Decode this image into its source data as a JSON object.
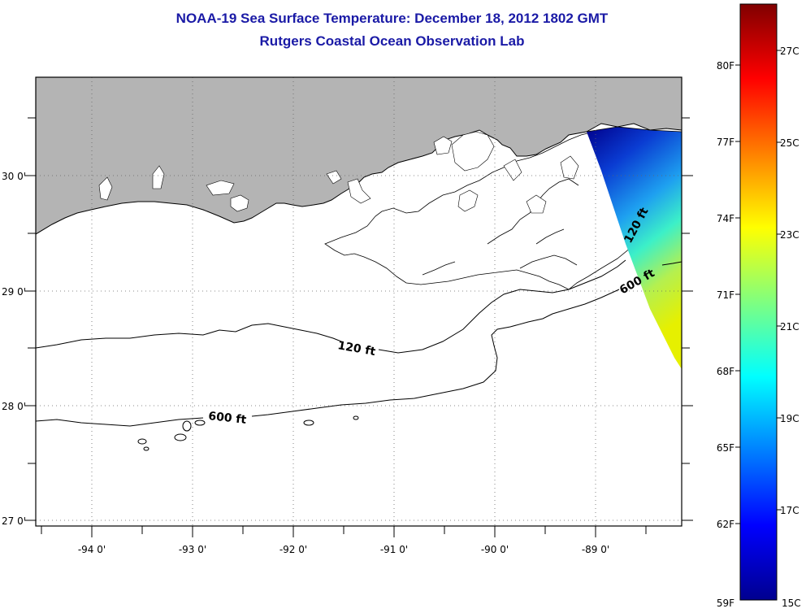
{
  "title": "NOAA-19 Sea Surface Temperature:  December 18, 2012 1802 GMT",
  "subtitle": "Rutgers Coastal Ocean Observation Lab",
  "map": {
    "lon_ticks": [
      "-94 0'",
      "-93 0'",
      "-92 0'",
      "-91 0'",
      "-90 0'",
      "-89 0'"
    ],
    "lat_ticks": [
      "30 0'",
      "29 0'",
      "28 0'",
      "27 0'"
    ],
    "contour_labels": [
      {
        "text": "120 ft",
        "id": "shelf-west"
      },
      {
        "text": "600 ft",
        "id": "slope-west"
      },
      {
        "text": "120 ft",
        "id": "shelf-east"
      },
      {
        "text": "600 ft",
        "id": "slope-east"
      }
    ],
    "land_color": "#b4b4b4",
    "grid": "dotted"
  },
  "colorbar": {
    "fahrenheit": [
      "80F",
      "77F",
      "74F",
      "71F",
      "68F",
      "65F",
      "62F",
      "59F"
    ],
    "celsius": [
      "27C",
      "25C",
      "23C",
      "21C",
      "19C",
      "17C",
      "15C"
    ],
    "range_c": [
      15,
      28.5
    ]
  }
}
